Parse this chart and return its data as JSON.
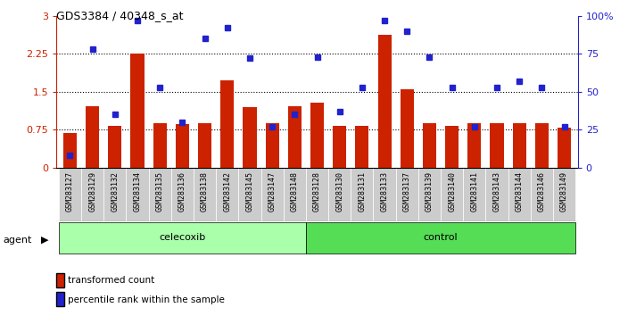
{
  "title": "GDS3384 / 40348_s_at",
  "categories": [
    "GSM283127",
    "GSM283129",
    "GSM283132",
    "GSM283134",
    "GSM283135",
    "GSM283136",
    "GSM283138",
    "GSM283142",
    "GSM283145",
    "GSM283147",
    "GSM283148",
    "GSM283128",
    "GSM283130",
    "GSM283131",
    "GSM283133",
    "GSM283137",
    "GSM283139",
    "GSM283140",
    "GSM283141",
    "GSM283143",
    "GSM283144",
    "GSM283146",
    "GSM283149"
  ],
  "bar_values": [
    0.68,
    1.22,
    0.82,
    2.25,
    0.87,
    0.85,
    0.87,
    1.72,
    1.2,
    0.87,
    1.22,
    1.28,
    0.82,
    0.82,
    2.62,
    1.55,
    0.87,
    0.82,
    0.87,
    0.87,
    0.87,
    0.88,
    0.78
  ],
  "dot_values": [
    8,
    78,
    35,
    97,
    53,
    30,
    85,
    92,
    72,
    27,
    35,
    73,
    37,
    53,
    97,
    90,
    73,
    53,
    27,
    53,
    57,
    53,
    27
  ],
  "celecoxib_count": 11,
  "control_count": 12,
  "bar_color": "#cc2200",
  "dot_color": "#2222cc",
  "celecoxib_color": "#aaffaa",
  "control_color": "#55dd55",
  "ylim_left": [
    0,
    3
  ],
  "ylim_right": [
    0,
    100
  ],
  "yticks_left": [
    0,
    0.75,
    1.5,
    2.25,
    3
  ],
  "yticks_right": [
    0,
    25,
    50,
    75,
    100
  ],
  "ytick_labels_left": [
    "0",
    "0.75",
    "1.5",
    "2.25",
    "3"
  ],
  "ytick_labels_right": [
    "0",
    "25",
    "50",
    "75",
    "100%"
  ],
  "hlines": [
    0.75,
    1.5,
    2.25
  ],
  "agent_label": "agent",
  "celecoxib_label": "celecoxib",
  "control_label": "control",
  "legend1": "transformed count",
  "legend2": "percentile rank within the sample",
  "bar_width": 0.6
}
